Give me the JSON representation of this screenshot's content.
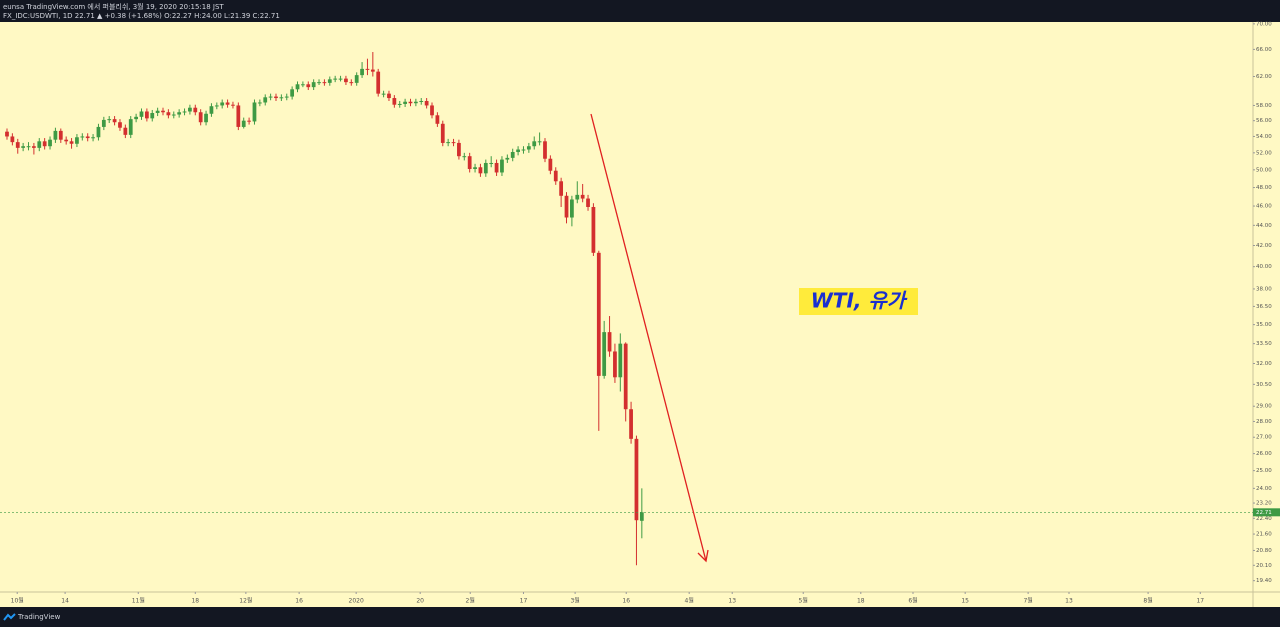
{
  "chart_data": {
    "type": "candlestick",
    "title": "eunsa TradingView.com 에서 퍼블리쉬, 3월 19, 2020 20:15:18 JST",
    "subtitle": "FX_IDC:USDWTI, 1D 22.71 ▲ +0.38 (+1.68%) O:22.27 H:24.00 L:21.39 C:22.71",
    "annotation": "WTI, 유가",
    "brand": "TradingView",
    "up_color": "#3e9a44",
    "down_color": "#d32f2f",
    "log_scale": true,
    "grid": false,
    "last_price": 22.71,
    "open": [
      54.6,
      54.0,
      53.3,
      52.6,
      52.8,
      52.8,
      52.6,
      53.4,
      52.8,
      53.6,
      54.7,
      53.6,
      53.4,
      53.1,
      53.9,
      54.0,
      53.8,
      53.9,
      55.2,
      56.1,
      56.2,
      55.8,
      55.1,
      54.2,
      56.2,
      56.5,
      57.2,
      56.3,
      57.0,
      57.3,
      57.1,
      56.7,
      56.8,
      57.1,
      57.2,
      57.7,
      57.1,
      55.8,
      56.9,
      57.9,
      58.0,
      58.4,
      58.1,
      58.0,
      55.2,
      56.0,
      55.9,
      58.4,
      58.4,
      59.1,
      59.2,
      59.0,
      59.1,
      59.2,
      60.2,
      60.9,
      60.9,
      60.5,
      61.2,
      61.2,
      61.1,
      61.6,
      61.7,
      61.7,
      61.2,
      61.1,
      62.2,
      63.1,
      63.0,
      62.7,
      59.6,
      59.6,
      59.0,
      58.1,
      58.2,
      58.5,
      58.3,
      58.5,
      58.6,
      58.0,
      56.7,
      55.6,
      53.2,
      53.3,
      53.2,
      51.6,
      51.6,
      50.1,
      50.3,
      49.6,
      50.8,
      50.8,
      49.7,
      51.2,
      51.4,
      52.1,
      52.4,
      52.4,
      52.8,
      53.4,
      53.4,
      51.3,
      49.9,
      48.7,
      47.1,
      44.8,
      46.7,
      47.2,
      46.8,
      45.9,
      41.3,
      31.1,
      34.4,
      32.9,
      31.0,
      33.5,
      28.8,
      26.9,
      22.27
    ],
    "high": [
      55.0,
      54.4,
      53.7,
      53.2,
      53.3,
      53.2,
      53.8,
      53.8,
      54.0,
      55.1,
      55.0,
      54.0,
      53.8,
      54.3,
      54.4,
      54.4,
      54.3,
      55.6,
      56.5,
      56.6,
      56.6,
      56.2,
      55.5,
      56.6,
      56.9,
      57.6,
      57.6,
      57.4,
      57.7,
      57.7,
      57.5,
      57.2,
      57.5,
      57.6,
      58.1,
      58.1,
      57.5,
      57.3,
      58.3,
      58.4,
      58.8,
      58.8,
      58.5,
      58.4,
      56.4,
      56.4,
      58.8,
      58.8,
      59.5,
      59.6,
      59.6,
      59.5,
      59.6,
      60.6,
      61.3,
      61.3,
      61.3,
      61.6,
      61.6,
      61.6,
      62.0,
      62.1,
      62.1,
      62.1,
      61.6,
      62.6,
      64.1,
      64.6,
      65.6,
      63.1,
      60.0,
      60.0,
      59.4,
      58.6,
      58.9,
      58.9,
      58.9,
      59.0,
      59.0,
      58.4,
      57.1,
      56.0,
      53.7,
      53.7,
      53.6,
      52.0,
      52.0,
      50.7,
      50.7,
      51.2,
      51.6,
      51.2,
      51.6,
      51.8,
      52.5,
      52.8,
      52.8,
      53.2,
      54.0,
      54.5,
      53.8,
      51.7,
      50.3,
      49.1,
      47.5,
      47.1,
      48.7,
      48.4,
      47.2,
      46.3,
      41.5,
      35.3,
      35.7,
      33.5,
      34.3,
      33.6,
      29.3,
      27.1,
      24.0
    ],
    "low": [
      53.6,
      52.9,
      51.9,
      52.2,
      52.3,
      51.8,
      52.2,
      52.4,
      52.4,
      53.2,
      53.2,
      53.0,
      52.5,
      52.7,
      53.5,
      53.4,
      53.4,
      53.5,
      54.8,
      55.7,
      55.4,
      54.7,
      53.8,
      53.8,
      55.8,
      56.1,
      55.9,
      55.9,
      56.6,
      56.7,
      56.3,
      56.3,
      56.4,
      56.7,
      56.8,
      56.7,
      55.4,
      55.4,
      56.5,
      57.5,
      57.6,
      57.7,
      57.6,
      54.8,
      55.0,
      55.5,
      55.5,
      57.9,
      58.0,
      58.7,
      58.6,
      58.6,
      58.7,
      58.8,
      59.8,
      60.5,
      60.1,
      60.1,
      60.8,
      60.7,
      60.7,
      61.2,
      61.3,
      60.8,
      60.7,
      60.7,
      61.8,
      62.2,
      62.0,
      59.2,
      59.1,
      58.6,
      57.7,
      57.7,
      57.8,
      57.9,
      57.9,
      58.1,
      57.6,
      56.3,
      55.2,
      52.8,
      52.8,
      52.8,
      51.2,
      51.1,
      49.7,
      49.7,
      49.2,
      49.2,
      50.3,
      49.3,
      49.3,
      50.8,
      51.0,
      51.7,
      51.9,
      52.0,
      52.4,
      52.9,
      50.9,
      49.5,
      48.3,
      45.9,
      44.2,
      43.9,
      46.3,
      46.4,
      45.5,
      41.0,
      27.4,
      30.9,
      32.5,
      30.6,
      30.0,
      28.0,
      26.6,
      20.1,
      21.39
    ],
    "close": [
      54.0,
      53.3,
      52.6,
      52.8,
      52.8,
      52.6,
      53.4,
      52.8,
      53.6,
      54.7,
      53.6,
      53.4,
      53.1,
      53.9,
      54.0,
      53.8,
      53.9,
      55.2,
      56.1,
      56.2,
      55.8,
      55.1,
      54.2,
      56.2,
      56.5,
      57.2,
      56.3,
      57.0,
      57.3,
      57.1,
      56.7,
      56.8,
      57.1,
      57.2,
      57.7,
      57.1,
      55.8,
      56.9,
      57.9,
      58.0,
      58.4,
      58.1,
      58.0,
      55.2,
      56.0,
      55.9,
      58.4,
      58.4,
      59.1,
      59.2,
      59.0,
      59.1,
      59.2,
      60.2,
      60.9,
      60.9,
      60.5,
      61.2,
      61.2,
      61.1,
      61.6,
      61.7,
      61.7,
      61.2,
      61.1,
      62.2,
      63.1,
      63.0,
      62.7,
      59.6,
      59.6,
      59.0,
      58.1,
      58.2,
      58.5,
      58.3,
      58.5,
      58.6,
      58.0,
      56.7,
      55.6,
      53.2,
      53.3,
      53.2,
      51.6,
      51.6,
      50.1,
      50.3,
      49.6,
      50.8,
      50.8,
      49.7,
      51.2,
      51.4,
      52.1,
      52.4,
      52.4,
      52.8,
      53.4,
      53.4,
      51.3,
      49.9,
      48.7,
      47.1,
      44.8,
      46.7,
      47.2,
      46.8,
      45.9,
      41.3,
      31.1,
      34.4,
      32.9,
      31.0,
      33.5,
      28.8,
      26.9,
      22.3,
      22.71
    ],
    "xlim": [
      -1.3,
      231.6
    ],
    "xticks": [
      {
        "value": 1.9,
        "label": "10월"
      },
      {
        "value": 10.8,
        "label": "14"
      },
      {
        "value": 24.4,
        "label": "11월"
      },
      {
        "value": 35.0,
        "label": "18"
      },
      {
        "value": 44.4,
        "label": "12월"
      },
      {
        "value": 54.3,
        "label": "16"
      },
      {
        "value": 64.9,
        "label": "2020"
      },
      {
        "value": 76.8,
        "label": "20"
      },
      {
        "value": 86.1,
        "label": "2월"
      },
      {
        "value": 96.0,
        "label": "17"
      },
      {
        "value": 105.6,
        "label": "3월"
      },
      {
        "value": 115.1,
        "label": "16"
      },
      {
        "value": 126.8,
        "label": "4월"
      },
      {
        "value": 134.8,
        "label": "13"
      },
      {
        "value": 148.0,
        "label": "5월"
      },
      {
        "value": 158.7,
        "label": "18"
      },
      {
        "value": 168.4,
        "label": "6월"
      },
      {
        "value": 178.1,
        "label": "15"
      },
      {
        "value": 189.8,
        "label": "7월"
      },
      {
        "value": 197.4,
        "label": "13"
      },
      {
        "value": 212.1,
        "label": "8월"
      },
      {
        "value": 221.8,
        "label": "17"
      }
    ],
    "ylim": [
      18.9,
      70.3
    ],
    "yticks": [
      {
        "value": 70,
        "label": "70.00"
      },
      {
        "value": 66,
        "label": "66.00"
      },
      {
        "value": 62,
        "label": "62.00"
      },
      {
        "value": 58,
        "label": "58.00"
      },
      {
        "value": 56,
        "label": "56.00"
      },
      {
        "value": 54,
        "label": "54.00"
      },
      {
        "value": 52,
        "label": "52.00"
      },
      {
        "value": 50,
        "label": "50.00"
      },
      {
        "value": 48,
        "label": "48.00"
      },
      {
        "value": 46,
        "label": "46.00"
      },
      {
        "value": 44,
        "label": "44.00"
      },
      {
        "value": 42,
        "label": "42.00"
      },
      {
        "value": 40,
        "label": "40.00"
      },
      {
        "value": 38,
        "label": "38.00"
      },
      {
        "value": 36.5,
        "label": "36.50"
      },
      {
        "value": 35,
        "label": "35.00"
      },
      {
        "value": 33.5,
        "label": "33.50"
      },
      {
        "value": 32,
        "label": "32.00"
      },
      {
        "value": 30.5,
        "label": "30.50"
      },
      {
        "value": 29,
        "label": "29.00"
      },
      {
        "value": 28,
        "label": "28.00"
      },
      {
        "value": 27,
        "label": "27.00"
      },
      {
        "value": 26,
        "label": "26.00"
      },
      {
        "value": 25,
        "label": "25.00"
      },
      {
        "value": 24,
        "label": "24.00"
      },
      {
        "value": 23.2,
        "label": "23.20"
      },
      {
        "value": 22.4,
        "label": "22.40"
      },
      {
        "value": 21.6,
        "label": "21.60"
      },
      {
        "value": 20.8,
        "label": "20.80"
      },
      {
        "value": 20.1,
        "label": "20.10"
      },
      {
        "value": 19.4,
        "label": "19.40"
      }
    ]
  }
}
